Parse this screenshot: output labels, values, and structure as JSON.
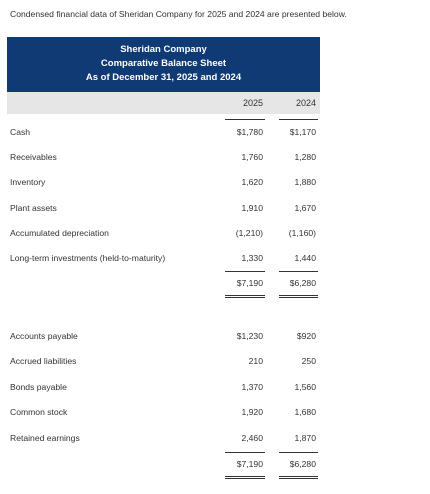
{
  "intro": "Condensed financial data of Sheridan Company for 2025 and 2024 are presented below.",
  "header": {
    "company": "Sheridan Company",
    "statement": "Comparative Balance Sheet",
    "date": "As of December 31, 2025 and 2024"
  },
  "years": [
    "2025",
    "2024"
  ],
  "assets": [
    {
      "label": "Cash",
      "y2025": "$1,780",
      "y2024": "$1,170"
    },
    {
      "label": "Receivables",
      "y2025": "1,760",
      "y2024": "1,280"
    },
    {
      "label": "Inventory",
      "y2025": "1,620",
      "y2024": "1,880"
    },
    {
      "label": "Plant assets",
      "y2025": "1,910",
      "y2024": "1,670"
    },
    {
      "label": "Accumulated depreciation",
      "y2025": "(1,210)",
      "y2024": "(1,160)"
    },
    {
      "label": "Long-term investments (held-to-maturity)",
      "y2025": "1,330",
      "y2024": "1,440"
    }
  ],
  "assets_total": {
    "y2025": "$7,190",
    "y2024": "$6,280"
  },
  "liabilities": [
    {
      "label": "Accounts payable",
      "y2025": "$1,230",
      "y2024": "$920"
    },
    {
      "label": "Accrued liabilities",
      "y2025": "210",
      "y2024": "250"
    },
    {
      "label": "Bonds payable",
      "y2025": "1,370",
      "y2024": "1,560"
    },
    {
      "label": "Common stock",
      "y2025": "1,920",
      "y2024": "1,680"
    },
    {
      "label": "Retained earnings",
      "y2025": "2,460",
      "y2024": "1,870"
    }
  ],
  "liabilities_total": {
    "y2025": "$7,190",
    "y2024": "$6,280"
  }
}
